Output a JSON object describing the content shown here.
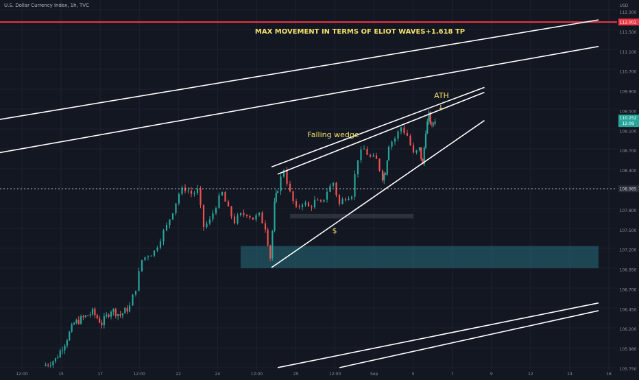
{
  "header": {
    "symbol_line": "U.S. Dollar Currency Index, 1h, TVC",
    "currency_label": "USD"
  },
  "colors": {
    "background": "#131722",
    "grid": "#1e2230",
    "up_candle": "#26a69a",
    "down_candle": "#ef5350",
    "trendline": "#ffffff",
    "resistance": "#f23645",
    "annotation_text": "#f5e16b",
    "demand_zone": "#2a7e8e",
    "axis_text": "#8b8f99",
    "last_price_bg": "#26a69a"
  },
  "annotations": {
    "title": "MAX MOVEMENT IN TERMS OF ELIOT WAVES+1.618 TP",
    "ath": "ATH",
    "ath_arrow": "↓",
    "falling_wedge": "Falling wedge",
    "dollar": "$"
  },
  "price_axis": {
    "ticks": [
      "112.300",
      "111.500",
      "111.100",
      "110.700",
      "109.900",
      "109.500",
      "109.100",
      "108.700",
      "108.400",
      "108.100",
      "107.800",
      "107.500",
      "107.200",
      "106.950",
      "106.700",
      "106.450",
      "106.200",
      "105.980",
      "105.750"
    ],
    "resistance_label": "112.002",
    "last_price_label": "110.252",
    "countdown_label": "12:08",
    "dotted_level_label": "108.985"
  },
  "time_axis": {
    "ticks": [
      "12:00",
      "15",
      "17",
      "12:00",
      "22",
      "24",
      "12:00",
      "29",
      "12:00",
      "Sep",
      "5",
      "7",
      "9",
      "12",
      "14",
      "16"
    ]
  },
  "chart_data": {
    "type": "candlestick",
    "title": "",
    "xlabel": "",
    "ylabel": "",
    "ylim": [
      105.7,
      112.4
    ],
    "x_range": [
      0,
      100
    ],
    "grid": true,
    "resistance_level": 112.002,
    "dotted_level": 108.985,
    "last_price": 110.252,
    "demand_zone": {
      "x_start": 39,
      "x_end": 97,
      "y_low": 107.55,
      "y_high": 107.95
    },
    "support_zone": {
      "x_start": 47,
      "x_end": 67,
      "y_low": 108.45,
      "y_high": 108.53
    },
    "trendlines": [
      {
        "name": "upper_channel_1",
        "x1": 0,
        "y1": 110.24,
        "x2": 97,
        "y2": 112.04
      },
      {
        "name": "lower_channel_1",
        "x1": 0,
        "y1": 109.64,
        "x2": 97,
        "y2": 111.56
      },
      {
        "name": "wedge_top_1",
        "x1": 44,
        "y1": 109.38,
        "x2": 78.5,
        "y2": 110.82
      },
      {
        "name": "wedge_top_2",
        "x1": 45,
        "y1": 109.25,
        "x2": 78.5,
        "y2": 110.73
      },
      {
        "name": "wedge_bottom",
        "x1": 44,
        "y1": 107.56,
        "x2": 78.5,
        "y2": 110.22
      },
      {
        "name": "lower_parallel_1",
        "x1": 45,
        "y1": 105.75,
        "x2": 97,
        "y2": 106.92
      },
      {
        "name": "lower_parallel_2",
        "x1": 55,
        "y1": 105.75,
        "x2": 97,
        "y2": 106.78
      }
    ],
    "price_path": [
      [
        7,
        105.78
      ],
      [
        9,
        105.9
      ],
      [
        10.5,
        106.2
      ],
      [
        12,
        106.55
      ],
      [
        13.5,
        106.65
      ],
      [
        15,
        106.75
      ],
      [
        16.5,
        106.55
      ],
      [
        18,
        106.8
      ],
      [
        19.5,
        106.7
      ],
      [
        21,
        106.85
      ],
      [
        22,
        107.2
      ],
      [
        23,
        107.7
      ],
      [
        24,
        107.8
      ],
      [
        25,
        107.85
      ],
      [
        26,
        108.1
      ],
      [
        27,
        108.3
      ],
      [
        28,
        108.6
      ],
      [
        29,
        108.9
      ],
      [
        30,
        109.0
      ],
      [
        31,
        108.9
      ],
      [
        32,
        108.95
      ],
      [
        33,
        108.3
      ],
      [
        34,
        108.4
      ],
      [
        35,
        108.7
      ],
      [
        36,
        108.9
      ],
      [
        37,
        108.6
      ],
      [
        38,
        108.4
      ],
      [
        39,
        108.5
      ],
      [
        40,
        108.55
      ],
      [
        41,
        108.45
      ],
      [
        42,
        108.5
      ],
      [
        43,
        108.3
      ],
      [
        43.8,
        107.75
      ],
      [
        44.5,
        108.7
      ],
      [
        45,
        109.0
      ],
      [
        46,
        109.35
      ],
      [
        47,
        108.9
      ],
      [
        48,
        108.6
      ],
      [
        49,
        108.75
      ],
      [
        50,
        108.65
      ],
      [
        51,
        108.75
      ],
      [
        52,
        108.7
      ],
      [
        53,
        108.95
      ],
      [
        54,
        109.1
      ],
      [
        55,
        108.7
      ],
      [
        56,
        108.85
      ],
      [
        57,
        108.9
      ],
      [
        58,
        109.55
      ],
      [
        59,
        109.7
      ],
      [
        60,
        109.55
      ],
      [
        61,
        109.5
      ],
      [
        62,
        109.2
      ],
      [
        62.5,
        109.3
      ],
      [
        63,
        109.8
      ],
      [
        64,
        109.9
      ],
      [
        65,
        110.1
      ],
      [
        66,
        109.95
      ],
      [
        67,
        109.6
      ],
      [
        68,
        109.7
      ],
      [
        68.5,
        109.4
      ],
      [
        69,
        110.05
      ],
      [
        69.5,
        110.3
      ],
      [
        70,
        110.1
      ],
      [
        70.5,
        110.25
      ]
    ],
    "series": []
  }
}
